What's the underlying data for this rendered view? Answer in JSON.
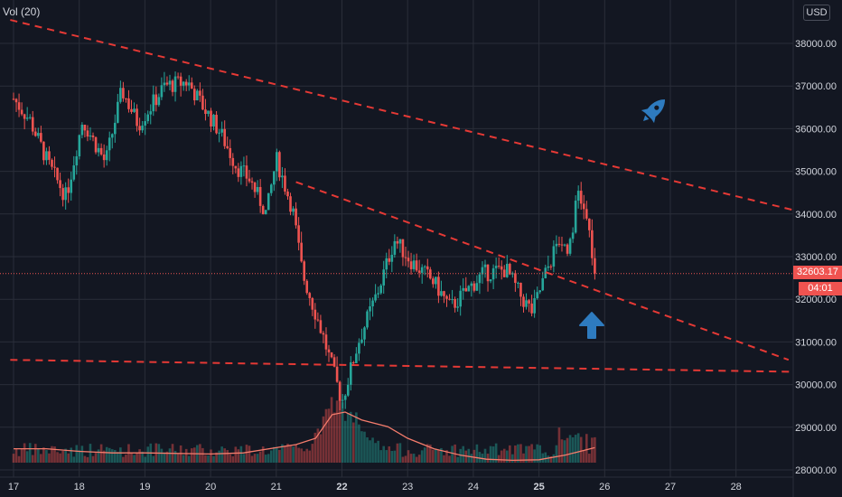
{
  "indicator": {
    "label": "Vol (20)"
  },
  "currency": {
    "label": "USD"
  },
  "last_price": {
    "value": "32603.17",
    "timer": "04:01"
  },
  "colors": {
    "background": "#131722",
    "grid": "#2a2e39",
    "up": "#26a69a",
    "down": "#ef5350",
    "trendline": "#e53935",
    "volume_ma": "#f57c6c",
    "icon": "#2e7bbf"
  },
  "icons": [
    "rocket-icon",
    "up-arrow-icon"
  ],
  "chart_data": {
    "type": "candlestick",
    "x_axis": {
      "tick_labels": [
        "17",
        "18",
        "19",
        "20",
        "21",
        "22",
        "23",
        "24",
        "25",
        "26",
        "27",
        "28"
      ],
      "bold_ticks": [
        "22",
        "25"
      ]
    },
    "y_axis": {
      "range": [
        27900,
        38500
      ],
      "tick_values": [
        28000,
        29000,
        30000,
        31000,
        32000,
        33000,
        34000,
        35000,
        36000,
        37000,
        38000
      ],
      "tick_labels": [
        "28000.00",
        "29000.00",
        "30000.00",
        "31000.00",
        "32000.00",
        "33000.00",
        "34000.00",
        "35000.00",
        "36000.00",
        "37000.00",
        "38000.00"
      ],
      "position": "right"
    },
    "grid": true,
    "price_path": [
      [
        17.0,
        36700
      ],
      [
        17.25,
        36200
      ],
      [
        17.55,
        35100
      ],
      [
        17.8,
        34400
      ],
      [
        18.05,
        36200
      ],
      [
        18.4,
        35200
      ],
      [
        18.65,
        36900
      ],
      [
        18.9,
        36100
      ],
      [
        19.3,
        37000
      ],
      [
        19.65,
        37100
      ],
      [
        19.85,
        36600
      ],
      [
        20.15,
        35900
      ],
      [
        20.4,
        35100
      ],
      [
        20.6,
        34800
      ],
      [
        20.85,
        34000
      ],
      [
        21.0,
        35300
      ],
      [
        21.25,
        34100
      ],
      [
        21.4,
        32600
      ],
      [
        21.7,
        31200
      ],
      [
        22.0,
        29600
      ],
      [
        22.25,
        31000
      ],
      [
        22.55,
        32200
      ],
      [
        22.8,
        33400
      ],
      [
        23.05,
        32900
      ],
      [
        23.4,
        32400
      ],
      [
        23.65,
        31800
      ],
      [
        23.9,
        32200
      ],
      [
        24.15,
        32600
      ],
      [
        24.5,
        32700
      ],
      [
        24.75,
        32000
      ],
      [
        24.9,
        31700
      ],
      [
        25.1,
        32600
      ],
      [
        25.3,
        33400
      ],
      [
        25.45,
        33200
      ],
      [
        25.6,
        34500
      ],
      [
        25.75,
        33700
      ],
      [
        25.85,
        32603
      ]
    ],
    "volume_ma_path": [
      [
        17.0,
        0.3
      ],
      [
        17.5,
        0.3
      ],
      [
        18.0,
        0.25
      ],
      [
        18.5,
        0.22
      ],
      [
        19.0,
        0.22
      ],
      [
        20.0,
        0.2
      ],
      [
        20.5,
        0.22
      ],
      [
        21.0,
        0.32
      ],
      [
        21.3,
        0.38
      ],
      [
        21.6,
        0.5
      ],
      [
        21.85,
        0.95
      ],
      [
        22.05,
        1.0
      ],
      [
        22.3,
        0.85
      ],
      [
        22.7,
        0.72
      ],
      [
        23.0,
        0.5
      ],
      [
        23.4,
        0.3
      ],
      [
        23.8,
        0.18
      ],
      [
        24.2,
        0.1
      ],
      [
        24.6,
        0.08
      ],
      [
        25.0,
        0.09
      ],
      [
        25.4,
        0.18
      ],
      [
        25.85,
        0.32
      ]
    ],
    "trendlines": [
      {
        "name": "upper-descending-trendline",
        "points": [
          [
            16.95,
            38550
          ],
          [
            28.85,
            34100
          ]
        ]
      },
      {
        "name": "middle-descending-trendline",
        "points": [
          [
            21.3,
            34750
          ],
          [
            28.8,
            30580
          ]
        ]
      },
      {
        "name": "lower-support-trendline",
        "points": [
          [
            16.95,
            30580
          ],
          [
            28.85,
            30300
          ]
        ]
      }
    ],
    "last_price_line": 32603.17
  }
}
